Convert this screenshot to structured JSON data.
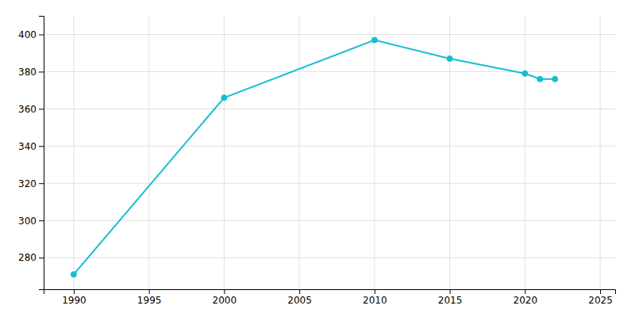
{
  "chart_data": {
    "type": "line",
    "x": [
      1990,
      2000,
      2010,
      2015,
      2020,
      2021,
      2022
    ],
    "values": [
      271,
      366,
      397,
      387,
      379,
      376,
      376
    ],
    "color": "#17BECF",
    "marker": "circle",
    "xlim": [
      1988,
      2026
    ],
    "ylim": [
      263,
      410
    ],
    "xticks": [
      1990,
      1995,
      2000,
      2005,
      2010,
      2015,
      2020,
      2025
    ],
    "yticks": [
      280,
      300,
      320,
      340,
      360,
      380,
      400
    ],
    "grid": true
  }
}
